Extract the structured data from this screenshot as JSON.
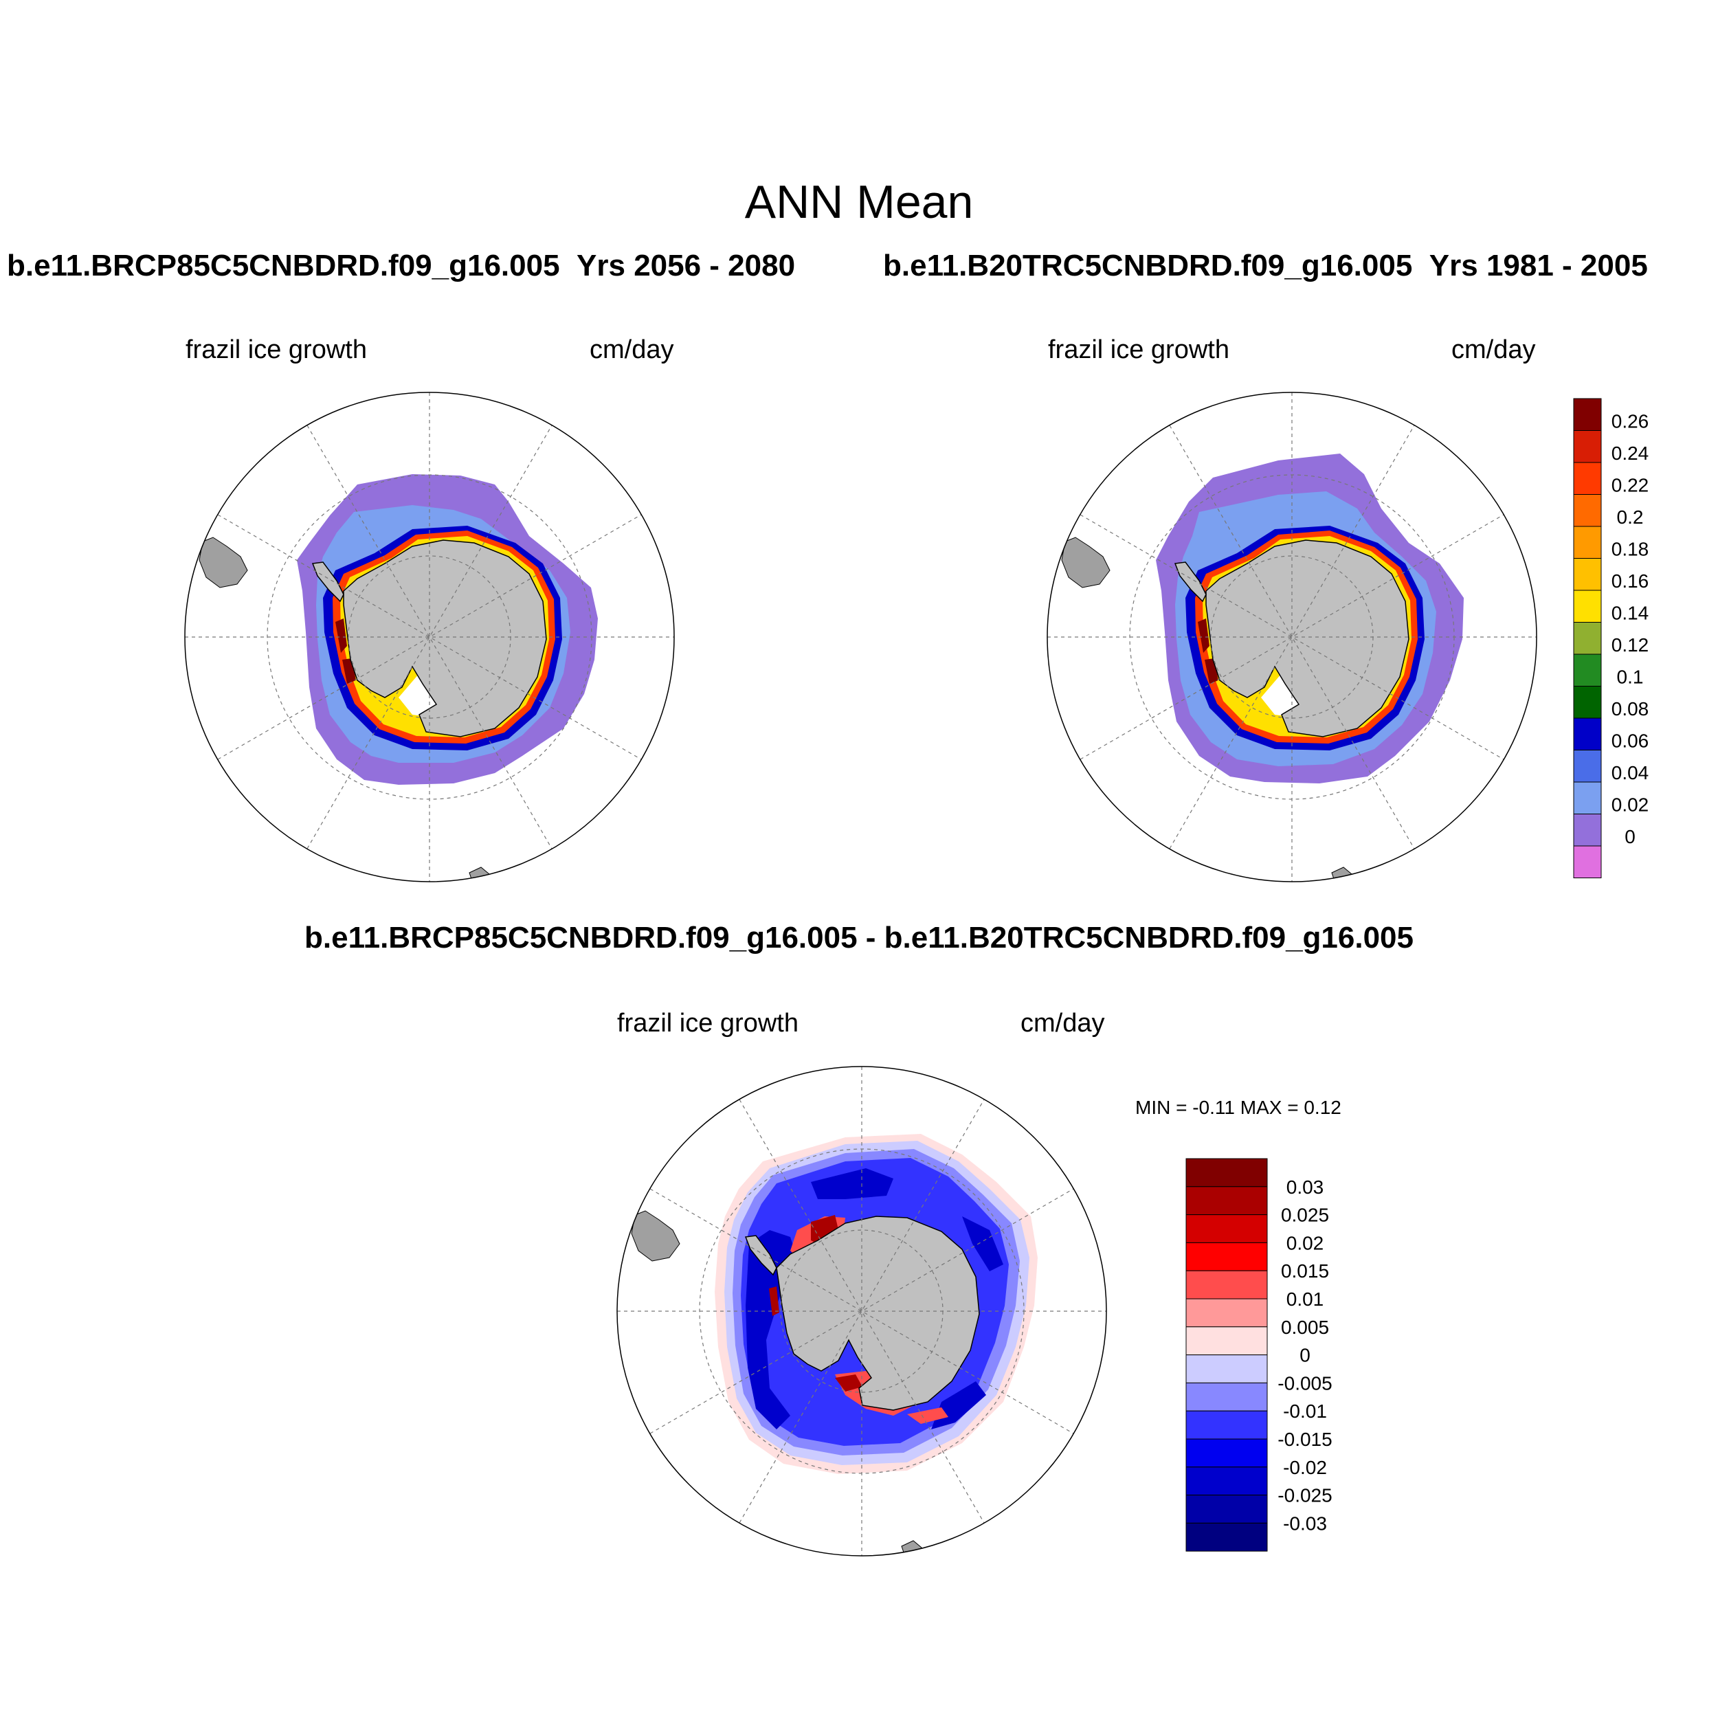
{
  "title": "ANN Mean",
  "panels": [
    {
      "case": "b.e11.BRCP85C5CNBDRD.f09_g16.005",
      "years": "Yrs 2056 - 2080",
      "variable": "frazil ice growth",
      "units": "cm/day"
    },
    {
      "case": "b.e11.B20TRC5CNBDRD.f09_g16.005",
      "years": "Yrs 1981 - 2005",
      "variable": "frazil ice growth",
      "units": "cm/day"
    }
  ],
  "diff": {
    "title": "b.e11.BRCP85C5CNBDRD.f09_g16.005 - b.e11.B20TRC5CNBDRD.f09_g16.005",
    "variable": "frazil ice growth",
    "units": "cm/day",
    "min_max": "MIN =  -0.11 MAX =   0.12"
  },
  "chart_data": [
    {
      "type": "heatmap",
      "projection": "south polar stereographic",
      "colorbar": {
        "levels": [
          "0",
          "0.02",
          "0.04",
          "0.06",
          "0.08",
          "0.1",
          "0.12",
          "0.14",
          "0.16",
          "0.18",
          "0.2",
          "0.22",
          "0.24",
          "0.26"
        ],
        "colors": [
          "#e070e0",
          "#9370db",
          "#7ba0f0",
          "#4a6de8",
          "#0000c8",
          "#006400",
          "#228b22",
          "#90b030",
          "#ffe000",
          "#ffc000",
          "#ff9a00",
          "#ff6a00",
          "#ff3a00",
          "#d81e05",
          "#800000"
        ]
      }
    },
    {
      "type": "heatmap",
      "projection": "south polar stereographic",
      "colorbar": {
        "levels": [
          "-0.03",
          "-0.025",
          "-0.02",
          "-0.015",
          "-0.01",
          "-0.005",
          "0",
          "0.005",
          "0.01",
          "0.015",
          "0.02",
          "0.025",
          "0.03"
        ],
        "colors": [
          "#000080",
          "#0000a8",
          "#0000cc",
          "#0000f0",
          "#3333ff",
          "#8888ff",
          "#ccccff",
          "#ffe0e0",
          "#ff9999",
          "#ff4d4d",
          "#ff0000",
          "#d40000",
          "#aa0000",
          "#800000"
        ]
      }
    }
  ]
}
